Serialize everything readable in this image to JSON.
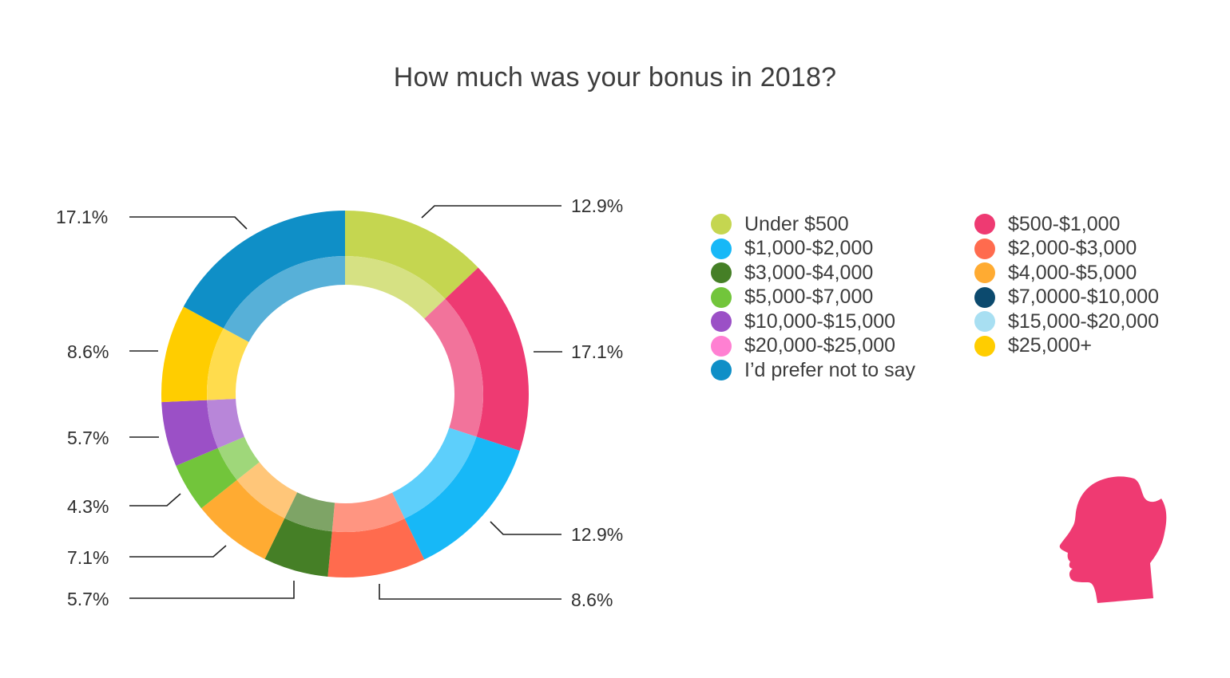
{
  "chart_data": {
    "type": "pie",
    "title": "How much was your bonus in 2018?",
    "legend_position": "right",
    "categories": [
      "Under $500",
      "$500-$1,000",
      "$1,000-$2,000",
      "$2,000-$3,000",
      "$3,000-$4,000",
      "$4,000-$5,000",
      "$5,000-$7,000",
      "$7,0000-$10,000",
      "$10,000-$15,000",
      "$15,000-$20,000",
      "$20,000-$25,000",
      "$25,000+",
      "I’d prefer not to say"
    ],
    "colors": [
      "#c5d650",
      "#ee3a72",
      "#17b8f7",
      "#ff6b4e",
      "#457f26",
      "#ffab32",
      "#72c53b",
      "#0c4a6e",
      "#9b50c6",
      "#a8dff2",
      "#ff80d2",
      "#ffcd00",
      "#0f8fc7"
    ],
    "slices": [
      {
        "label": "Under $500",
        "value": 12.9,
        "color": "#c5d650",
        "inner": "#d6e183",
        "data_label": "12.9%"
      },
      {
        "label": "$500-$1,000",
        "value": 17.1,
        "color": "#ee3a72",
        "inner": "#f2739b",
        "data_label": "17.1%"
      },
      {
        "label": "$1,000-$2,000",
        "value": 12.9,
        "color": "#17b8f7",
        "inner": "#5dcffb",
        "data_label": "12.9%"
      },
      {
        "label": "$2,000-$3,000",
        "value": 8.6,
        "color": "#ff6b4e",
        "inner": "#ff9581",
        "data_label": "8.6%"
      },
      {
        "label": "$3,000-$4,000",
        "value": 5.7,
        "color": "#457f26",
        "inner": "#7ea466",
        "data_label": "5.7%"
      },
      {
        "label": "$4,000-$5,000",
        "value": 7.1,
        "color": "#ffab32",
        "inner": "#ffc679",
        "data_label": "7.1%"
      },
      {
        "label": "$5,000-$7,000",
        "value": 4.3,
        "color": "#72c53b",
        "inner": "#9fd77a",
        "data_label": "4.3%"
      },
      {
        "label": "$10,000-$15,000",
        "value": 5.7,
        "color": "#9b50c6",
        "inner": "#b886d9",
        "data_label": "5.7%"
      },
      {
        "label": "$25,000+",
        "value": 8.6,
        "color": "#ffcd00",
        "inner": "#ffdc4d",
        "data_label": "8.6%"
      },
      {
        "label": "I’d prefer not to say",
        "value": 17.1,
        "color": "#0f8fc7",
        "inner": "#57b0d8",
        "data_label": "17.1%"
      }
    ]
  },
  "logo": {
    "name": "head-silhouette-logo",
    "color": "#ef3a72"
  }
}
